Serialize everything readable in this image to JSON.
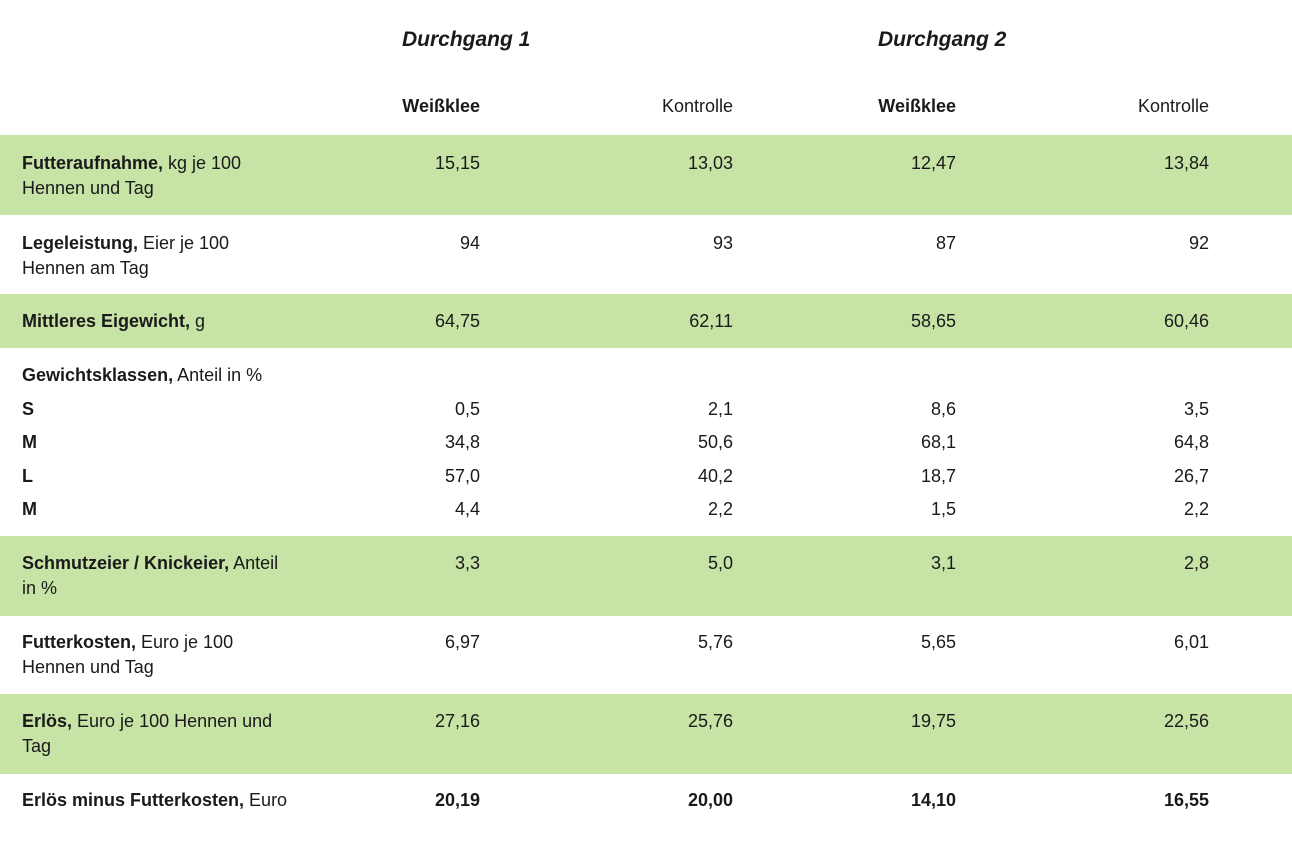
{
  "groups": [
    "Durchgang 1",
    "Durchgang 2"
  ],
  "columns": [
    "Weißklee",
    "Kontrolle",
    "Weißklee",
    "Kontrolle"
  ],
  "rows": [
    {
      "label_bold": "Futteraufnahme,",
      "label_rest": " kg je 100 Hennen und Tag",
      "values": [
        "15,15",
        "13,03",
        "12,47",
        "13,84"
      ]
    },
    {
      "label_bold": "Legeleistung,",
      "label_rest": " Eier je 100 Hennen am Tag",
      "values": [
        "94",
        "93",
        "87",
        "92"
      ]
    },
    {
      "label_bold": "Mittleres Eigewicht,",
      "label_rest": " g",
      "values": [
        "64,75",
        "62,11",
        "58,65",
        "60,46"
      ]
    },
    {
      "label_bold": "Gewichtsklassen,",
      "label_rest": " Anteil in %"
    },
    {
      "label_bold": "Schmutzeier / Knickeier,",
      "label_rest": " Anteil in %",
      "values": [
        "3,3",
        "5,0",
        "3,1",
        "2,8"
      ]
    },
    {
      "label_bold": "Futterkosten,",
      "label_rest": " Euro je 100 Hennen und Tag",
      "values": [
        "6,97",
        "5,76",
        "5,65",
        "6,01"
      ]
    },
    {
      "label_bold": "Erlös,",
      "label_rest": " Euro je 100 Hennen und Tag",
      "values": [
        "27,16",
        "25,76",
        "19,75",
        "22,56"
      ]
    },
    {
      "label_bold": "Erlös minus Futterkosten,",
      "label_rest": " Euro",
      "values": [
        "20,19",
        "20,00",
        "14,10",
        "16,55"
      ]
    }
  ],
  "classes": [
    {
      "label": "S",
      "values": [
        "0,5",
        "2,1",
        "8,6",
        "3,5"
      ]
    },
    {
      "label": "M",
      "values": [
        "34,8",
        "50,6",
        "68,1",
        "64,8"
      ]
    },
    {
      "label": "L",
      "values": [
        "57,0",
        "40,2",
        "18,7",
        "26,7"
      ]
    },
    {
      "label": "M",
      "values": [
        "4,4",
        "2,2",
        "1,5",
        "2,2"
      ]
    }
  ],
  "colors": {
    "band": "#c7e3a6"
  }
}
